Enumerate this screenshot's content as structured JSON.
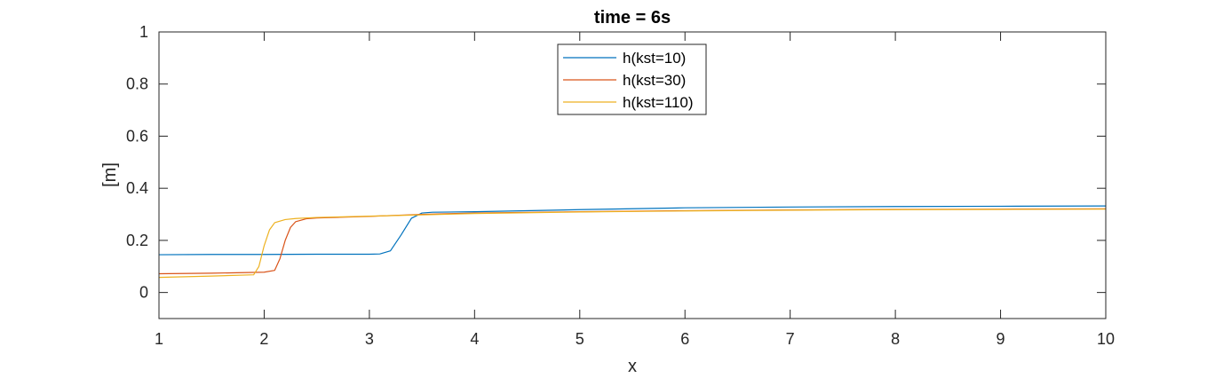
{
  "chart_data": {
    "type": "line",
    "title": "time = 6s",
    "xlabel": "x",
    "ylabel": "[m]",
    "xlim": [
      1,
      10
    ],
    "ylim": [
      -0.1,
      1
    ],
    "xticks": [
      1,
      2,
      3,
      4,
      5,
      6,
      7,
      8,
      9,
      10
    ],
    "xtick_labels": [
      "1",
      "2",
      "3",
      "4",
      "5",
      "6",
      "7",
      "8",
      "9",
      "10"
    ],
    "yticks": [
      0,
      0.2,
      0.4,
      0.6,
      0.8,
      1
    ],
    "ytick_labels": [
      "0",
      "0.2",
      "0.4",
      "0.6",
      "0.8",
      "1"
    ],
    "grid": false,
    "legend_position": "top-center",
    "series": [
      {
        "name": "h(kst=10)",
        "color": "#0072BD",
        "x": [
          1,
          1.5,
          2,
          2.5,
          3,
          3.1,
          3.2,
          3.3,
          3.4,
          3.5,
          3.6,
          4,
          5,
          6,
          7,
          8,
          9,
          10
        ],
        "y": [
          0.145,
          0.146,
          0.146,
          0.147,
          0.147,
          0.148,
          0.16,
          0.22,
          0.285,
          0.305,
          0.308,
          0.31,
          0.318,
          0.325,
          0.328,
          0.33,
          0.331,
          0.332
        ]
      },
      {
        "name": "h(kst=30)",
        "color": "#D95319",
        "x": [
          1,
          1.5,
          2,
          2.1,
          2.15,
          2.2,
          2.25,
          2.3,
          2.4,
          2.5,
          3,
          3.5,
          4,
          5,
          6,
          7,
          8,
          9,
          10
        ],
        "y": [
          0.072,
          0.074,
          0.078,
          0.085,
          0.13,
          0.2,
          0.25,
          0.272,
          0.283,
          0.286,
          0.292,
          0.3,
          0.305,
          0.31,
          0.314,
          0.317,
          0.319,
          0.32,
          0.321
        ]
      },
      {
        "name": "h(kst=110)",
        "color": "#EDB120",
        "x": [
          1,
          1.5,
          1.9,
          1.95,
          2,
          2.05,
          2.1,
          2.2,
          2.3,
          2.5,
          3,
          3.5,
          4,
          5,
          6,
          7,
          8,
          9,
          10
        ],
        "y": [
          0.058,
          0.063,
          0.068,
          0.1,
          0.18,
          0.24,
          0.268,
          0.28,
          0.284,
          0.288,
          0.293,
          0.298,
          0.303,
          0.309,
          0.313,
          0.316,
          0.318,
          0.319,
          0.32
        ]
      }
    ]
  }
}
